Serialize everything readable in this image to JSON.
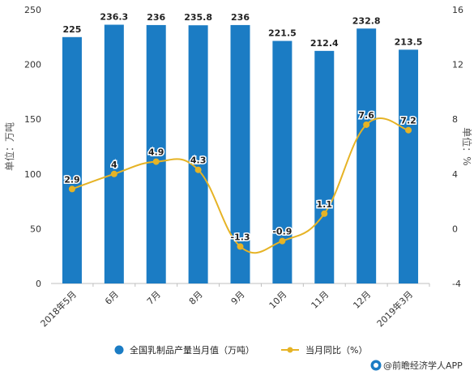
{
  "chart_data": {
    "type": "bar",
    "categories": [
      "2018年5月",
      "6月",
      "7月",
      "8月",
      "9月",
      "10月",
      "11月",
      "12月",
      "2019年3月"
    ],
    "series": [
      {
        "name": "全国乳制品产量当月值（万吨）",
        "type": "bar",
        "axis": "left",
        "values": [
          225,
          236.3,
          236,
          235.8,
          236,
          221.5,
          212.4,
          232.8,
          213.5
        ],
        "labels": [
          "225",
          "236.3",
          "236",
          "235.8",
          "236",
          "221.5",
          "212.4",
          "232.8",
          "213.5"
        ],
        "color": "#1b7cc4"
      },
      {
        "name": "当月同比（%）",
        "type": "line",
        "axis": "right",
        "values": [
          2.9,
          4,
          4.9,
          4.3,
          -1.3,
          -0.9,
          1.1,
          7.6,
          7.2
        ],
        "labels": [
          "2.9",
          "4",
          "4.9",
          "4.3",
          "-1.3",
          "-0.9",
          "1.1",
          "7.6",
          "7.2"
        ],
        "color": "#e6b325"
      }
    ],
    "y_left": {
      "label": "单位：万吨",
      "range": [
        0,
        250
      ],
      "ticks": [
        "0",
        "50",
        "100",
        "150",
        "200",
        "250"
      ],
      "tick_values": [
        0,
        50,
        100,
        150,
        200,
        250
      ]
    },
    "y_right": {
      "label": "单位：%",
      "range": [
        -4,
        16
      ],
      "ticks": [
        "-4",
        "0",
        "4",
        "8",
        "12",
        "16"
      ],
      "tick_values": [
        -4,
        0,
        4,
        8,
        12,
        16
      ]
    },
    "legend_position": "bottom",
    "grid": false
  },
  "footer": {
    "source": "@前瞻经济学人APP"
  }
}
